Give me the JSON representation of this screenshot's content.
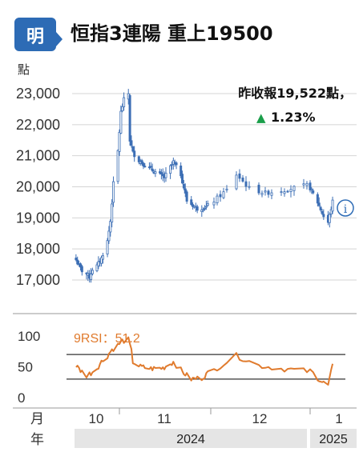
{
  "header": {
    "logo_text": "明",
    "title": "恒指3連陽 重上19500"
  },
  "chart_data": {
    "type": "candlestick",
    "title": "恒指3連陽 重上19500",
    "ylabel": "點",
    "ylim": [
      16500,
      23500
    ],
    "yticks": [
      "17,000",
      "18,000",
      "19,000",
      "20,000",
      "21,000",
      "22,000",
      "23,000"
    ],
    "ytick_values": [
      17000,
      18000,
      19000,
      20000,
      21000,
      22000,
      23000
    ],
    "x_row_label": "月",
    "year_row_label": "年",
    "months": [
      "10",
      "11",
      "12",
      "1"
    ],
    "years": [
      "2024",
      "2025"
    ],
    "start_date": "2024-09-01",
    "candle_color": "#3d6fb5",
    "close_path": [
      {
        "date": "2024-09-02",
        "close": 17650
      },
      {
        "date": "2024-09-04",
        "close": 17450
      },
      {
        "date": "2024-09-06",
        "close": 17300
      },
      {
        "date": "2024-09-09",
        "close": 17200
      },
      {
        "date": "2024-09-11",
        "close": 17100
      },
      {
        "date": "2024-09-13",
        "close": 17350
      },
      {
        "date": "2024-09-16",
        "close": 17450
      },
      {
        "date": "2024-09-19",
        "close": 17700
      },
      {
        "date": "2024-09-23",
        "close": 18250
      },
      {
        "date": "2024-09-25",
        "close": 18900
      },
      {
        "date": "2024-09-27",
        "close": 20100
      },
      {
        "date": "2024-09-30",
        "close": 21150
      },
      {
        "date": "2024-10-02",
        "close": 22400
      },
      {
        "date": "2024-10-03",
        "close": 22600
      },
      {
        "date": "2024-10-04",
        "close": 22800
      },
      {
        "date": "2024-10-07",
        "close": 23000
      },
      {
        "date": "2024-10-08",
        "close": 21500
      },
      {
        "date": "2024-10-10",
        "close": 21100
      },
      {
        "date": "2024-10-14",
        "close": 20850
      },
      {
        "date": "2024-10-18",
        "close": 20700
      },
      {
        "date": "2024-10-24",
        "close": 20500
      },
      {
        "date": "2024-10-31",
        "close": 20300
      },
      {
        "date": "2024-11-06",
        "close": 20800
      },
      {
        "date": "2024-11-11",
        "close": 20400
      },
      {
        "date": "2024-11-15",
        "close": 19550
      },
      {
        "date": "2024-11-22",
        "close": 19300
      },
      {
        "date": "2024-11-28",
        "close": 19350
      },
      {
        "date": "2024-12-02",
        "close": 19550
      },
      {
        "date": "2024-12-06",
        "close": 19900
      },
      {
        "date": "2024-12-09",
        "close": 20400
      },
      {
        "date": "2024-12-13",
        "close": 19950
      },
      {
        "date": "2024-12-18",
        "close": 19800
      },
      {
        "date": "2024-12-24",
        "close": 19900
      },
      {
        "date": "2024-12-31",
        "close": 20050
      },
      {
        "date": "2025-01-06",
        "close": 19500
      },
      {
        "date": "2025-01-10",
        "close": 19050
      },
      {
        "date": "2025-01-13",
        "close": 18850
      },
      {
        "date": "2025-01-15",
        "close": 19300
      },
      {
        "date": "2025-01-16",
        "close": 19522
      }
    ],
    "annotations": {
      "last_close": "昨收報19,522點，",
      "arrow": "▲",
      "change": "1.23%",
      "change_color": "#1a9e4a"
    },
    "rsi": {
      "label": "9RSI：51.2",
      "ylim": [
        0,
        100
      ],
      "yticks": [
        "0",
        "50",
        "100"
      ],
      "ytick_values": [
        0,
        50,
        100
      ],
      "reference_lines": [
        30,
        70
      ],
      "color": "#e07b2e",
      "path": [
        {
          "date": "2024-09-02",
          "value": 52
        },
        {
          "date": "2024-09-05",
          "value": 44
        },
        {
          "date": "2024-09-09",
          "value": 36
        },
        {
          "date": "2024-09-12",
          "value": 40
        },
        {
          "date": "2024-09-16",
          "value": 48
        },
        {
          "date": "2024-09-19",
          "value": 58
        },
        {
          "date": "2024-09-23",
          "value": 68
        },
        {
          "date": "2024-09-26",
          "value": 78
        },
        {
          "date": "2024-09-30",
          "value": 85
        },
        {
          "date": "2024-10-03",
          "value": 92
        },
        {
          "date": "2024-10-07",
          "value": 94
        },
        {
          "date": "2024-10-09",
          "value": 75
        },
        {
          "date": "2024-10-10",
          "value": 58
        },
        {
          "date": "2024-10-15",
          "value": 50
        },
        {
          "date": "2024-10-22",
          "value": 47
        },
        {
          "date": "2024-10-30",
          "value": 48
        },
        {
          "date": "2024-11-06",
          "value": 58
        },
        {
          "date": "2024-11-12",
          "value": 42
        },
        {
          "date": "2024-11-18",
          "value": 30
        },
        {
          "date": "2024-11-25",
          "value": 32
        },
        {
          "date": "2024-12-02",
          "value": 45
        },
        {
          "date": "2024-12-09",
          "value": 68
        },
        {
          "date": "2024-12-16",
          "value": 52
        },
        {
          "date": "2024-12-23",
          "value": 47
        },
        {
          "date": "2025-01-02",
          "value": 42
        },
        {
          "date": "2025-01-09",
          "value": 25
        },
        {
          "date": "2025-01-13",
          "value": 20
        },
        {
          "date": "2025-01-16",
          "value": 51.2
        }
      ]
    }
  }
}
